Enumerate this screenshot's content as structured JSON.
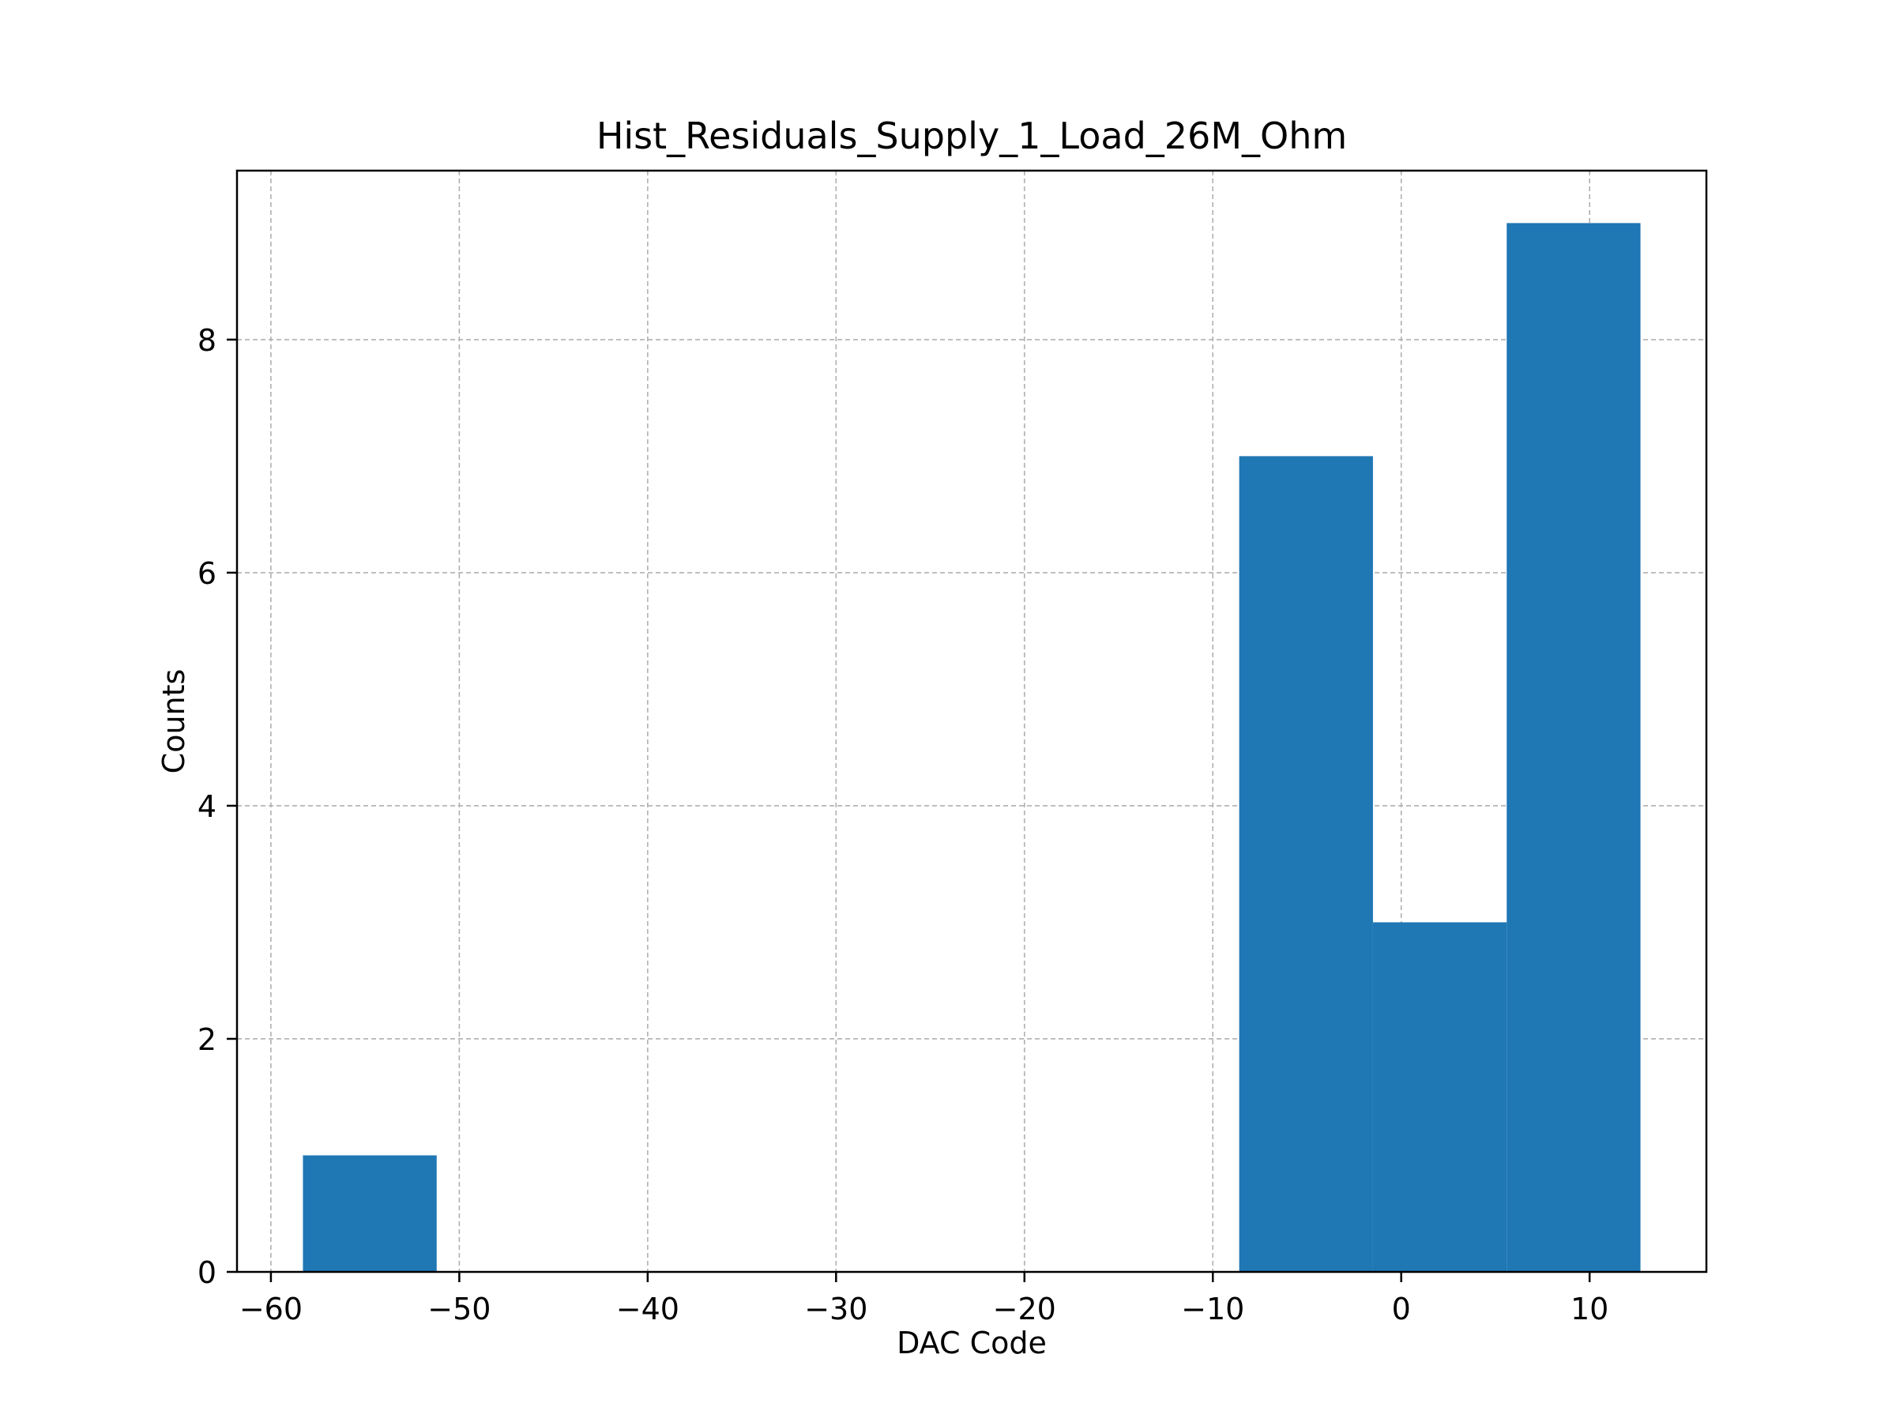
{
  "chart_data": {
    "type": "bar",
    "title": "Hist_Residuals_Supply_1_Load_26M_Ohm",
    "xlabel": "DAC Code",
    "ylabel": "Counts",
    "xlim": [
      -61.8,
      16.2
    ],
    "ylim": [
      0,
      9.45
    ],
    "xticks": [
      {
        "value": -60,
        "label": "−60"
      },
      {
        "value": -50,
        "label": "−50"
      },
      {
        "value": -40,
        "label": "−40"
      },
      {
        "value": -30,
        "label": "−30"
      },
      {
        "value": -20,
        "label": "−20"
      },
      {
        "value": -10,
        "label": "−10"
      },
      {
        "value": 0,
        "label": "0"
      },
      {
        "value": 10,
        "label": "10"
      }
    ],
    "yticks": [
      {
        "value": 0,
        "label": "0"
      },
      {
        "value": 2,
        "label": "2"
      },
      {
        "value": 4,
        "label": "4"
      },
      {
        "value": 6,
        "label": "6"
      },
      {
        "value": 8,
        "label": "8"
      }
    ],
    "grid": true,
    "bar_color": "#1f77b4",
    "bins": [
      {
        "x0": -58.3,
        "x1": -51.2,
        "count": 1
      },
      {
        "x0": -51.2,
        "x1": -44.1,
        "count": 0
      },
      {
        "x0": -44.1,
        "x1": -37.0,
        "count": 0
      },
      {
        "x0": -37.0,
        "x1": -29.9,
        "count": 0
      },
      {
        "x0": -29.9,
        "x1": -22.8,
        "count": 0
      },
      {
        "x0": -22.8,
        "x1": -15.7,
        "count": 0
      },
      {
        "x0": -15.7,
        "x1": -8.6,
        "count": 0
      },
      {
        "x0": -8.6,
        "x1": -1.5,
        "count": 7
      },
      {
        "x0": -1.5,
        "x1": 5.6,
        "count": 3
      },
      {
        "x0": 5.6,
        "x1": 12.7,
        "count": 9
      }
    ]
  }
}
